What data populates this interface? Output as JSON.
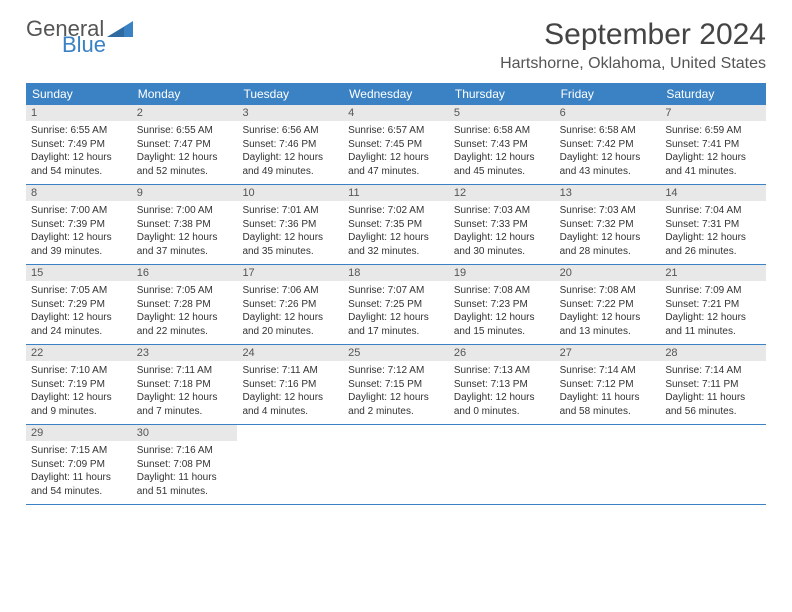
{
  "logo": {
    "general": "General",
    "blue": "Blue"
  },
  "title": "September 2024",
  "location": "Hartshorne, Oklahoma, United States",
  "weekdays": [
    "Sunday",
    "Monday",
    "Tuesday",
    "Wednesday",
    "Thursday",
    "Friday",
    "Saturday"
  ],
  "colors": {
    "header_bg": "#3b82c4",
    "daynum_bg": "#e8e8e8",
    "page_bg": "#ffffff",
    "text": "#333333"
  },
  "typography": {
    "title_fontsize": 30,
    "location_fontsize": 16,
    "weekday_fontsize": 12,
    "daynum_fontsize": 11,
    "body_fontsize": 10
  },
  "weeks": [
    [
      {
        "n": "1",
        "sr": "Sunrise: 6:55 AM",
        "ss": "Sunset: 7:49 PM",
        "d1": "Daylight: 12 hours",
        "d2": "and 54 minutes."
      },
      {
        "n": "2",
        "sr": "Sunrise: 6:55 AM",
        "ss": "Sunset: 7:47 PM",
        "d1": "Daylight: 12 hours",
        "d2": "and 52 minutes."
      },
      {
        "n": "3",
        "sr": "Sunrise: 6:56 AM",
        "ss": "Sunset: 7:46 PM",
        "d1": "Daylight: 12 hours",
        "d2": "and 49 minutes."
      },
      {
        "n": "4",
        "sr": "Sunrise: 6:57 AM",
        "ss": "Sunset: 7:45 PM",
        "d1": "Daylight: 12 hours",
        "d2": "and 47 minutes."
      },
      {
        "n": "5",
        "sr": "Sunrise: 6:58 AM",
        "ss": "Sunset: 7:43 PM",
        "d1": "Daylight: 12 hours",
        "d2": "and 45 minutes."
      },
      {
        "n": "6",
        "sr": "Sunrise: 6:58 AM",
        "ss": "Sunset: 7:42 PM",
        "d1": "Daylight: 12 hours",
        "d2": "and 43 minutes."
      },
      {
        "n": "7",
        "sr": "Sunrise: 6:59 AM",
        "ss": "Sunset: 7:41 PM",
        "d1": "Daylight: 12 hours",
        "d2": "and 41 minutes."
      }
    ],
    [
      {
        "n": "8",
        "sr": "Sunrise: 7:00 AM",
        "ss": "Sunset: 7:39 PM",
        "d1": "Daylight: 12 hours",
        "d2": "and 39 minutes."
      },
      {
        "n": "9",
        "sr": "Sunrise: 7:00 AM",
        "ss": "Sunset: 7:38 PM",
        "d1": "Daylight: 12 hours",
        "d2": "and 37 minutes."
      },
      {
        "n": "10",
        "sr": "Sunrise: 7:01 AM",
        "ss": "Sunset: 7:36 PM",
        "d1": "Daylight: 12 hours",
        "d2": "and 35 minutes."
      },
      {
        "n": "11",
        "sr": "Sunrise: 7:02 AM",
        "ss": "Sunset: 7:35 PM",
        "d1": "Daylight: 12 hours",
        "d2": "and 32 minutes."
      },
      {
        "n": "12",
        "sr": "Sunrise: 7:03 AM",
        "ss": "Sunset: 7:33 PM",
        "d1": "Daylight: 12 hours",
        "d2": "and 30 minutes."
      },
      {
        "n": "13",
        "sr": "Sunrise: 7:03 AM",
        "ss": "Sunset: 7:32 PM",
        "d1": "Daylight: 12 hours",
        "d2": "and 28 minutes."
      },
      {
        "n": "14",
        "sr": "Sunrise: 7:04 AM",
        "ss": "Sunset: 7:31 PM",
        "d1": "Daylight: 12 hours",
        "d2": "and 26 minutes."
      }
    ],
    [
      {
        "n": "15",
        "sr": "Sunrise: 7:05 AM",
        "ss": "Sunset: 7:29 PM",
        "d1": "Daylight: 12 hours",
        "d2": "and 24 minutes."
      },
      {
        "n": "16",
        "sr": "Sunrise: 7:05 AM",
        "ss": "Sunset: 7:28 PM",
        "d1": "Daylight: 12 hours",
        "d2": "and 22 minutes."
      },
      {
        "n": "17",
        "sr": "Sunrise: 7:06 AM",
        "ss": "Sunset: 7:26 PM",
        "d1": "Daylight: 12 hours",
        "d2": "and 20 minutes."
      },
      {
        "n": "18",
        "sr": "Sunrise: 7:07 AM",
        "ss": "Sunset: 7:25 PM",
        "d1": "Daylight: 12 hours",
        "d2": "and 17 minutes."
      },
      {
        "n": "19",
        "sr": "Sunrise: 7:08 AM",
        "ss": "Sunset: 7:23 PM",
        "d1": "Daylight: 12 hours",
        "d2": "and 15 minutes."
      },
      {
        "n": "20",
        "sr": "Sunrise: 7:08 AM",
        "ss": "Sunset: 7:22 PM",
        "d1": "Daylight: 12 hours",
        "d2": "and 13 minutes."
      },
      {
        "n": "21",
        "sr": "Sunrise: 7:09 AM",
        "ss": "Sunset: 7:21 PM",
        "d1": "Daylight: 12 hours",
        "d2": "and 11 minutes."
      }
    ],
    [
      {
        "n": "22",
        "sr": "Sunrise: 7:10 AM",
        "ss": "Sunset: 7:19 PM",
        "d1": "Daylight: 12 hours",
        "d2": "and 9 minutes."
      },
      {
        "n": "23",
        "sr": "Sunrise: 7:11 AM",
        "ss": "Sunset: 7:18 PM",
        "d1": "Daylight: 12 hours",
        "d2": "and 7 minutes."
      },
      {
        "n": "24",
        "sr": "Sunrise: 7:11 AM",
        "ss": "Sunset: 7:16 PM",
        "d1": "Daylight: 12 hours",
        "d2": "and 4 minutes."
      },
      {
        "n": "25",
        "sr": "Sunrise: 7:12 AM",
        "ss": "Sunset: 7:15 PM",
        "d1": "Daylight: 12 hours",
        "d2": "and 2 minutes."
      },
      {
        "n": "26",
        "sr": "Sunrise: 7:13 AM",
        "ss": "Sunset: 7:13 PM",
        "d1": "Daylight: 12 hours",
        "d2": "and 0 minutes."
      },
      {
        "n": "27",
        "sr": "Sunrise: 7:14 AM",
        "ss": "Sunset: 7:12 PM",
        "d1": "Daylight: 11 hours",
        "d2": "and 58 minutes."
      },
      {
        "n": "28",
        "sr": "Sunrise: 7:14 AM",
        "ss": "Sunset: 7:11 PM",
        "d1": "Daylight: 11 hours",
        "d2": "and 56 minutes."
      }
    ],
    [
      {
        "n": "29",
        "sr": "Sunrise: 7:15 AM",
        "ss": "Sunset: 7:09 PM",
        "d1": "Daylight: 11 hours",
        "d2": "and 54 minutes."
      },
      {
        "n": "30",
        "sr": "Sunrise: 7:16 AM",
        "ss": "Sunset: 7:08 PM",
        "d1": "Daylight: 11 hours",
        "d2": "and 51 minutes."
      },
      null,
      null,
      null,
      null,
      null
    ]
  ]
}
